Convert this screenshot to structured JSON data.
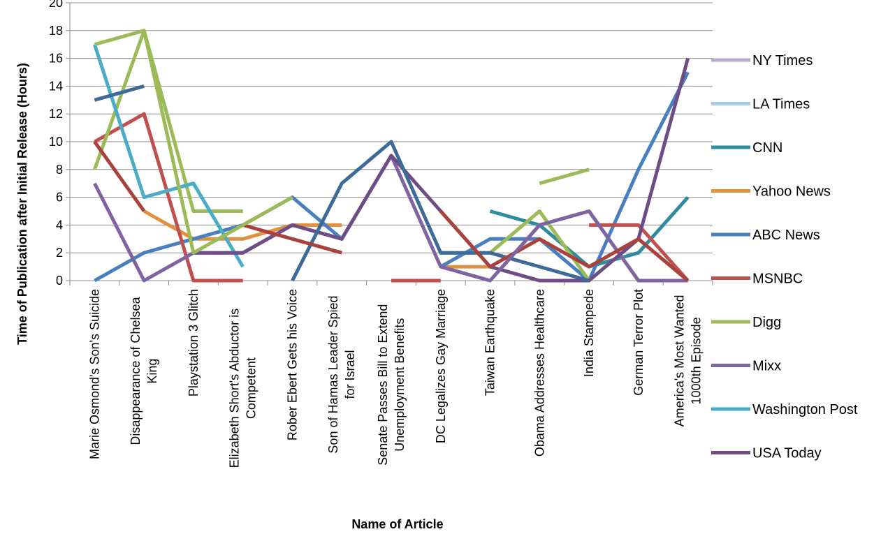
{
  "chart_data": {
    "type": "line",
    "xlabel": "Name of Article",
    "ylabel": "Time of Publication after Initial Release (Hours)",
    "ylim": [
      0,
      20
    ],
    "yticks": [
      0,
      2,
      4,
      6,
      8,
      10,
      12,
      14,
      16,
      18,
      20
    ],
    "grid": true,
    "legend_position": "right",
    "categories": [
      "Marie Osmond's Son's Suicide",
      "Disappearance of Chelsea King",
      "Playstation 3 Glitch",
      "Elizabeth Short's Abductor is Competent",
      "Rober Ebert Gets his Voice",
      "Son of Hamas Leader Spied for Israel",
      "Senate Passes Bill to Extend Unemployment Benefits",
      "DC Legalizes Gay Marriage",
      "Taiwan Earthquake",
      "Obama Addresses Healthcare",
      "India Stampede",
      "German Terror Plot",
      "America's Most Wanted 1000th Episode"
    ],
    "category_lines": [
      [
        "Marie Osmond's Son's Suicide"
      ],
      [
        "Disappearance of Chelsea",
        "King"
      ],
      [
        "Playstation 3 Glitch"
      ],
      [
        "Elizabeth Short's Abductor is",
        "Competent"
      ],
      [
        "Rober Ebert Gets his Voice"
      ],
      [
        "Son of Hamas Leader Spied",
        "for Israel"
      ],
      [
        "Senate Passes Bill to Extend",
        "Unemployment Benefits"
      ],
      [
        "DC Legalizes Gay Marriage"
      ],
      [
        "Taiwan Earthquake"
      ],
      [
        "Obama Addresses Healthcare"
      ],
      [
        "India Stampede"
      ],
      [
        "German Terror Plot"
      ],
      [
        "America's Most Wanted",
        "1000th Episode"
      ]
    ],
    "series": [
      {
        "name": "NY Times",
        "color": "#b7aacd",
        "values": [
          null,
          null,
          null,
          null,
          null,
          null,
          null,
          null,
          null,
          null,
          null,
          null,
          null
        ]
      },
      {
        "name": "LA Times",
        "color": "#a4cfe0",
        "values": [
          null,
          null,
          null,
          null,
          null,
          null,
          null,
          null,
          null,
          null,
          null,
          null,
          null
        ]
      },
      {
        "name": "CNN",
        "color": "#2e8c9e",
        "values": [
          null,
          null,
          null,
          null,
          null,
          null,
          null,
          null,
          5,
          4,
          1,
          2,
          6
        ]
      },
      {
        "name": "Yahoo News",
        "color": "#e0913f",
        "values": [
          null,
          5,
          3,
          3,
          4,
          4,
          null,
          1,
          1,
          null,
          5,
          0,
          0
        ]
      },
      {
        "name": "ABC News",
        "color": "#4a7fbf",
        "values": [
          0,
          2,
          3,
          4,
          6,
          3,
          null,
          1,
          3,
          3,
          0,
          8,
          15
        ]
      },
      {
        "name": "MSNBC",
        "color": "#c0504d",
        "values": [
          10,
          12,
          0,
          0,
          null,
          null,
          0,
          0,
          null,
          null,
          4,
          4,
          0
        ]
      },
      {
        "name": "Digg",
        "color": "#9bbb59",
        "values": [
          8,
          18,
          5,
          5,
          null,
          null,
          null,
          2,
          2,
          5,
          0,
          3,
          0
        ]
      },
      {
        "name": "Mixx",
        "color": "#8064a2",
        "values": [
          7,
          0,
          2,
          2,
          4,
          3,
          9,
          1,
          0,
          4,
          5,
          0,
          0
        ]
      },
      {
        "name": "Washington Post",
        "color": "#4bacc6",
        "values": [
          17,
          6,
          7,
          1,
          null,
          null,
          null,
          null,
          null,
          null,
          null,
          null,
          null
        ]
      },
      {
        "name": "USA Today",
        "color": "#6e4d85",
        "values": [
          null,
          null,
          2,
          2,
          4,
          3,
          9,
          5,
          1,
          0,
          0,
          3,
          16
        ]
      }
    ],
    "extra_segments": [
      {
        "color": "#3d6a97",
        "values": [
          13,
          14,
          null,
          null,
          null,
          null,
          null,
          null,
          null,
          null,
          null,
          null,
          null
        ]
      },
      {
        "color": "#3d6a97",
        "values": [
          null,
          null,
          null,
          null,
          0,
          7,
          10,
          2,
          2,
          1,
          0,
          null,
          null
        ]
      },
      {
        "color": "#a8423c",
        "values": [
          10,
          5,
          null,
          4,
          3,
          2,
          null,
          5,
          1,
          3,
          1,
          3,
          0
        ]
      },
      {
        "color": "#9bbb59",
        "values": [
          17,
          18,
          2,
          4,
          6,
          null,
          null,
          null,
          null,
          7,
          8,
          null,
          null
        ]
      },
      {
        "color": "#8064a2",
        "values": [
          null,
          null,
          null,
          null,
          null,
          null,
          null,
          1,
          0,
          4,
          5,
          null,
          null
        ]
      }
    ]
  }
}
